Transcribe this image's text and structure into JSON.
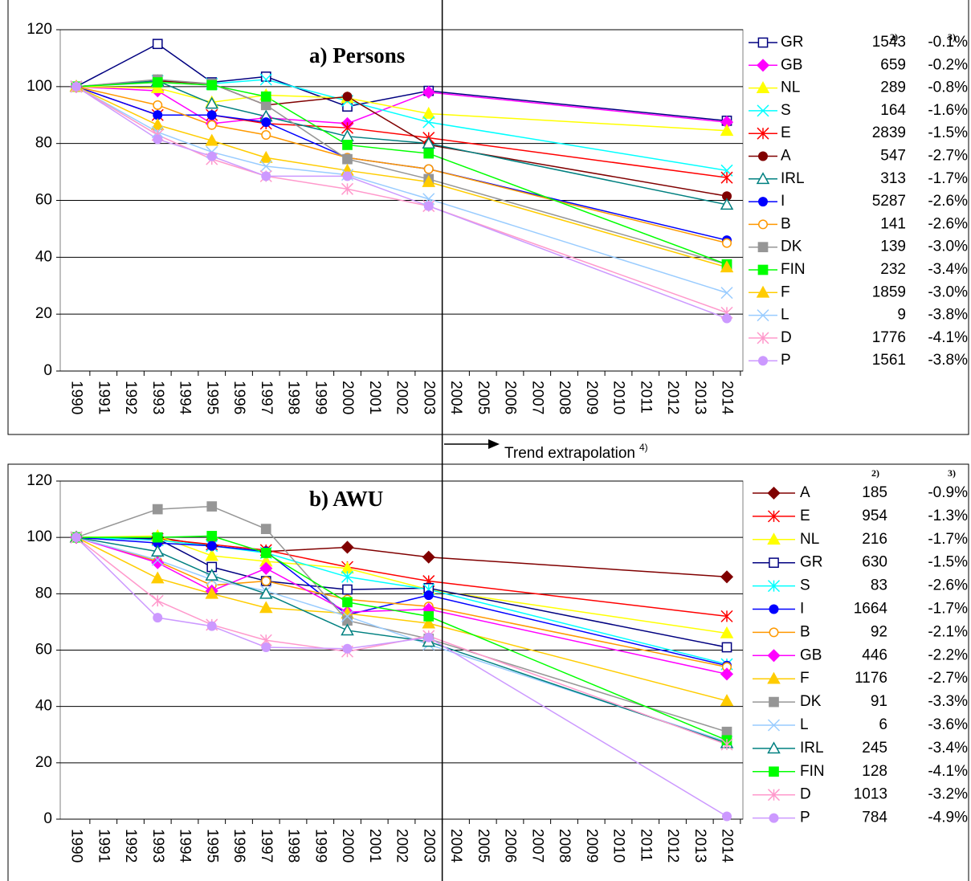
{
  "chart_data": [
    {
      "type": "line",
      "title": "a) Persons",
      "x": [
        1990,
        1993,
        1995,
        1997,
        2000,
        2003,
        2014
      ],
      "xlim": [
        1990,
        2014
      ],
      "xticks": [
        1990,
        1991,
        1992,
        1993,
        1994,
        1995,
        1996,
        1997,
        1998,
        1999,
        2000,
        2001,
        2002,
        2003,
        2004,
        2005,
        2006,
        2007,
        2008,
        2009,
        2010,
        2011,
        2012,
        2013,
        2014
      ],
      "ylim": [
        0,
        120
      ],
      "yticks": [
        0,
        20,
        40,
        60,
        80,
        100,
        120
      ],
      "grid": true,
      "legend_columns": [
        "2)",
        "3)"
      ],
      "series": [
        {
          "name": "GR",
          "color": "#000080",
          "marker": "square",
          "filled": false,
          "n": 1543,
          "change": "-0.1%",
          "values": [
            100,
            115,
            101.5,
            103.5,
            93,
            98.5,
            88
          ]
        },
        {
          "name": "GB",
          "color": "#ff00ff",
          "marker": "diamond",
          "filled": true,
          "n": 659,
          "change": "-0.2%",
          "values": [
            100,
            98.5,
            87,
            89,
            87,
            98,
            87.5
          ]
        },
        {
          "name": "NL",
          "color": "#ffff00",
          "marker": "triangle",
          "filled": true,
          "n": 289,
          "change": "-0.8%",
          "values": [
            100,
            99.5,
            94.5,
            97,
            96,
            90.5,
            84.5
          ]
        },
        {
          "name": "S",
          "color": "#00ffff",
          "marker": "x",
          "filled": true,
          "n": 164,
          "change": "-1.6%",
          "values": [
            100,
            102,
            101,
            102.5,
            95,
            87.5,
            70.5
          ]
        },
        {
          "name": "E",
          "color": "#ff0000",
          "marker": "star",
          "filled": true,
          "n": 2839,
          "change": "-1.5%",
          "values": [
            100,
            90,
            90,
            87,
            85.5,
            82,
            68
          ]
        },
        {
          "name": "A",
          "color": "#800000",
          "marker": "circle",
          "filled": true,
          "n": 547,
          "change": "-2.7%",
          "values": [
            100,
            102,
            101,
            93.5,
            96.5,
            79.5,
            61.5
          ]
        },
        {
          "name": "IRL",
          "color": "#008080",
          "marker": "triangle",
          "filled": false,
          "n": 313,
          "change": "-1.7%",
          "values": [
            100,
            102,
            94,
            89.5,
            82.5,
            80,
            58.5
          ]
        },
        {
          "name": "I",
          "color": "#0000ff",
          "marker": "circle",
          "filled": true,
          "n": 5287,
          "change": "-2.6%",
          "values": [
            100,
            90,
            90,
            87.5,
            75,
            71,
            46
          ]
        },
        {
          "name": "B",
          "color": "#ff9900",
          "marker": "circle",
          "filled": false,
          "n": 141,
          "change": "-2.6%",
          "values": [
            100,
            93.5,
            86.5,
            83,
            75,
            71,
            45
          ]
        },
        {
          "name": "DK",
          "color": "#969696",
          "marker": "square",
          "filled": true,
          "n": 139,
          "change": "-3.0%",
          "values": [
            100,
            102.5,
            101,
            93.5,
            74.5,
            67.5,
            37.5
          ]
        },
        {
          "name": "FIN",
          "color": "#00ff00",
          "marker": "square",
          "filled": true,
          "n": 232,
          "change": "-3.4%",
          "values": [
            100,
            101.5,
            100.5,
            96.5,
            79.5,
            76.5,
            37.5
          ]
        },
        {
          "name": "F",
          "color": "#ffcc00",
          "marker": "triangle",
          "filled": true,
          "n": 1859,
          "change": "-3.0%",
          "values": [
            100,
            86.5,
            81,
            75,
            70.5,
            66.5,
            36.5
          ]
        },
        {
          "name": "L",
          "color": "#99ccff",
          "marker": "x",
          "filled": true,
          "n": 9,
          "change": "-3.8%",
          "values": [
            100,
            84,
            77,
            72,
            69,
            60.5,
            27.5
          ]
        },
        {
          "name": "D",
          "color": "#ff99cc",
          "marker": "star",
          "filled": true,
          "n": 1776,
          "change": "-4.1%",
          "values": [
            100,
            83,
            74.5,
            68.5,
            64,
            58,
            20.5
          ]
        },
        {
          "name": "P",
          "color": "#cc99ff",
          "marker": "circle",
          "filled": true,
          "n": 1561,
          "change": "-3.8%",
          "values": [
            100,
            81.5,
            75.5,
            68.5,
            68.5,
            58,
            18.5
          ]
        }
      ]
    },
    {
      "type": "line",
      "title": "b) AWU",
      "x": [
        1990,
        1993,
        1995,
        1997,
        2000,
        2003,
        2014
      ],
      "xlim": [
        1990,
        2014
      ],
      "xticks": [
        1990,
        1991,
        1992,
        1993,
        1994,
        1995,
        1996,
        1997,
        1998,
        1999,
        2000,
        2001,
        2002,
        2003,
        2004,
        2005,
        2006,
        2007,
        2008,
        2009,
        2010,
        2011,
        2012,
        2013,
        2014
      ],
      "ylim": [
        0,
        120
      ],
      "yticks": [
        0,
        20,
        40,
        60,
        80,
        100,
        120
      ],
      "grid": true,
      "legend_columns": [
        "2)",
        "3)"
      ],
      "series": [
        {
          "name": "A",
          "color": "#800000",
          "marker": "diamond",
          "filled": true,
          "n": 185,
          "change": "-0.9%",
          "values": [
            100,
            100,
            97,
            95,
            96.5,
            93,
            86
          ]
        },
        {
          "name": "E",
          "color": "#ff0000",
          "marker": "star",
          "filled": true,
          "n": 954,
          "change": "-1.3%",
          "values": [
            100,
            99.5,
            97.5,
            95.5,
            89.5,
            84.5,
            72
          ]
        },
        {
          "name": "NL",
          "color": "#ffff00",
          "marker": "triangle",
          "filled": true,
          "n": 216,
          "change": "-1.7%",
          "values": [
            100,
            100.5,
            93.5,
            91.5,
            89,
            81.5,
            66
          ]
        },
        {
          "name": "GR",
          "color": "#000080",
          "marker": "square",
          "filled": false,
          "n": 630,
          "change": "-1.5%",
          "values": [
            100,
            99.5,
            89.5,
            84.5,
            81.5,
            82,
            61
          ]
        },
        {
          "name": "S",
          "color": "#00ffff",
          "marker": "star",
          "filled": true,
          "n": 83,
          "change": "-2.6%",
          "values": [
            100,
            99,
            97,
            94.5,
            86,
            81.5,
            55
          ]
        },
        {
          "name": "I",
          "color": "#0000ff",
          "marker": "circle",
          "filled": true,
          "n": 1664,
          "change": "-1.7%",
          "values": [
            100,
            98,
            97,
            95,
            72.5,
            79.5,
            54.5
          ]
        },
        {
          "name": "B",
          "color": "#ff9900",
          "marker": "circle",
          "filled": false,
          "n": 92,
          "change": "-2.1%",
          "values": [
            100,
            91.5,
            83,
            84.5,
            78,
            75.5,
            54
          ]
        },
        {
          "name": "GB",
          "color": "#ff00ff",
          "marker": "diamond",
          "filled": true,
          "n": 446,
          "change": "-2.2%",
          "values": [
            100,
            91,
            81,
            89,
            73.5,
            74.5,
            51.5
          ]
        },
        {
          "name": "F",
          "color": "#ffcc00",
          "marker": "triangle",
          "filled": true,
          "n": 1176,
          "change": "-2.7%",
          "values": [
            100,
            85.5,
            80,
            75,
            73,
            69.5,
            42
          ]
        },
        {
          "name": "DK",
          "color": "#969696",
          "marker": "square",
          "filled": true,
          "n": 91,
          "change": "-3.3%",
          "values": [
            100,
            110,
            111,
            103,
            70.5,
            64,
            31
          ]
        },
        {
          "name": "L",
          "color": "#99ccff",
          "marker": "x",
          "filled": true,
          "n": 6,
          "change": "-3.6%",
          "values": [
            100,
            92,
            85,
            81,
            72,
            62,
            27.5
          ]
        },
        {
          "name": "IRL",
          "color": "#008080",
          "marker": "triangle",
          "filled": false,
          "n": 245,
          "change": "-3.4%",
          "values": [
            100,
            95,
            86.5,
            80,
            67,
            63,
            27
          ]
        },
        {
          "name": "FIN",
          "color": "#00ff00",
          "marker": "square",
          "filled": true,
          "n": 128,
          "change": "-4.1%",
          "values": [
            100,
            100,
            100.5,
            94.5,
            77,
            72,
            28
          ]
        },
        {
          "name": "D",
          "color": "#ff99cc",
          "marker": "star",
          "filled": true,
          "n": 1013,
          "change": "-3.2%",
          "values": [
            100,
            77.5,
            69,
            63.5,
            59.5,
            65,
            26.5
          ]
        },
        {
          "name": "P",
          "color": "#cc99ff",
          "marker": "circle",
          "filled": true,
          "n": 784,
          "change": "-4.9%",
          "values": [
            100,
            71.5,
            68.5,
            61,
            60.5,
            64.5,
            1
          ]
        }
      ]
    }
  ],
  "divider_x": 2003.5,
  "annotation": {
    "text": "Trend extrapolation",
    "note": "4)"
  }
}
